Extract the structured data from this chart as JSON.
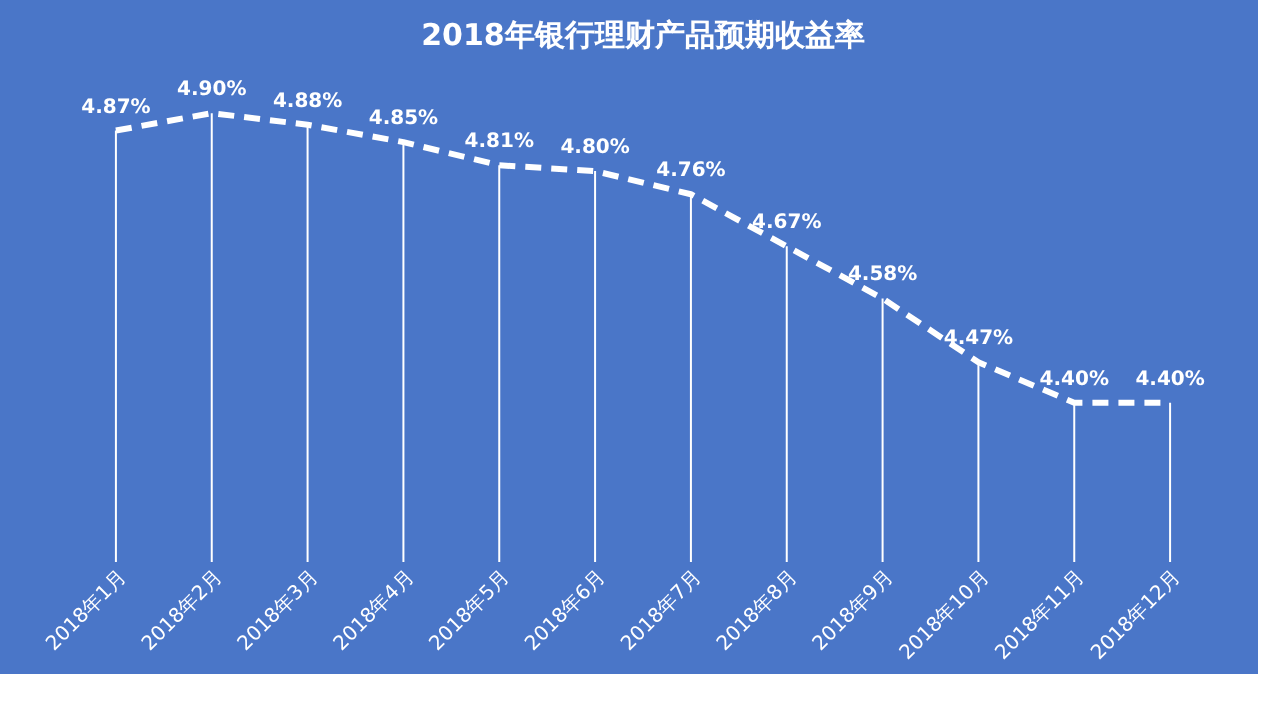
{
  "chart_data": {
    "type": "line",
    "title": "2018年银行理财产品预期收益率",
    "categories": [
      "2018年1月",
      "2018年2月",
      "2018年3月",
      "2018年4月",
      "2018年5月",
      "2018年6月",
      "2018年7月",
      "2018年8月",
      "2018年9月",
      "2018年10月",
      "2018年11月",
      "2018年12月"
    ],
    "series": [
      {
        "color": "#ffffff",
        "values": [
          4.87,
          4.9,
          4.88,
          4.85,
          4.81,
          4.8,
          4.76,
          4.67,
          4.58,
          4.47,
          4.4,
          4.4
        ],
        "value_labels": [
          "4.87%",
          "4.90%",
          "4.88%",
          "4.85%",
          "4.81%",
          "4.80%",
          "4.76%",
          "4.67%",
          "4.58%",
          "4.47%",
          "4.40%",
          "4.40%"
        ]
      }
    ],
    "line_style": "dashed",
    "marker": "none",
    "grid": "x",
    "tick_labels": "x"
  }
}
